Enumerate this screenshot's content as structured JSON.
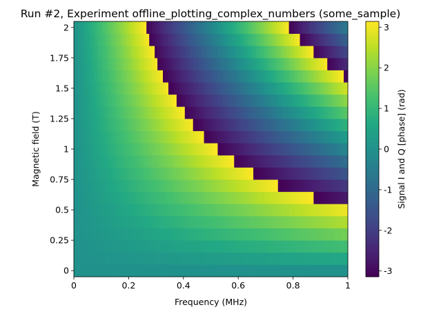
{
  "chart_data": {
    "type": "heatmap",
    "title": "Run #2, Experiment offline_plotting_complex_numbers (some_sample)",
    "xlabel": "Frequency (MHz)",
    "ylabel": "Magnetic field (T)",
    "colorbar_label": "Signal I and Q [phase] (rad)",
    "colormap": "viridis",
    "xlim": [
      0,
      1
    ],
    "ylim": [
      -0.05,
      2.05
    ],
    "clim": [
      -3.14159,
      3.14159
    ],
    "x_ticks": [
      {
        "value": 0,
        "label": "0"
      },
      {
        "value": 0.2,
        "label": "0.2"
      },
      {
        "value": 0.4,
        "label": "0.4"
      },
      {
        "value": 0.6,
        "label": "0.6"
      },
      {
        "value": 0.8,
        "label": "0.8"
      },
      {
        "value": 1,
        "label": "1"
      }
    ],
    "y_ticks": [
      {
        "value": 0,
        "label": "0"
      },
      {
        "value": 0.25,
        "label": "0.25"
      },
      {
        "value": 0.5,
        "label": "0.5"
      },
      {
        "value": 0.75,
        "label": "0.75"
      },
      {
        "value": 1,
        "label": "1"
      },
      {
        "value": 1.25,
        "label": "1.25"
      },
      {
        "value": 1.5,
        "label": "1.5"
      },
      {
        "value": 1.75,
        "label": "1.75"
      },
      {
        "value": 2,
        "label": "2"
      }
    ],
    "colorbar_ticks": [
      {
        "value": 3,
        "label": "3"
      },
      {
        "value": 2,
        "label": "2"
      },
      {
        "value": 1,
        "label": "1"
      },
      {
        "value": 0,
        "label": "0"
      },
      {
        "value": -1,
        "label": "-1"
      },
      {
        "value": -2,
        "label": "-2"
      },
      {
        "value": -3,
        "label": "-3"
      }
    ],
    "grid": {
      "x_start": 0,
      "x_step": 0.01,
      "x_count": 101,
      "y_start": 0,
      "y_step": 0.1,
      "y_count": 21,
      "values_description": "phase = angle(exp(1j*a*x*y)) with a ≈ 6 rad/(MHz·T), wrapped to [-π, π]",
      "phase_coefficient": 6.0
    }
  }
}
